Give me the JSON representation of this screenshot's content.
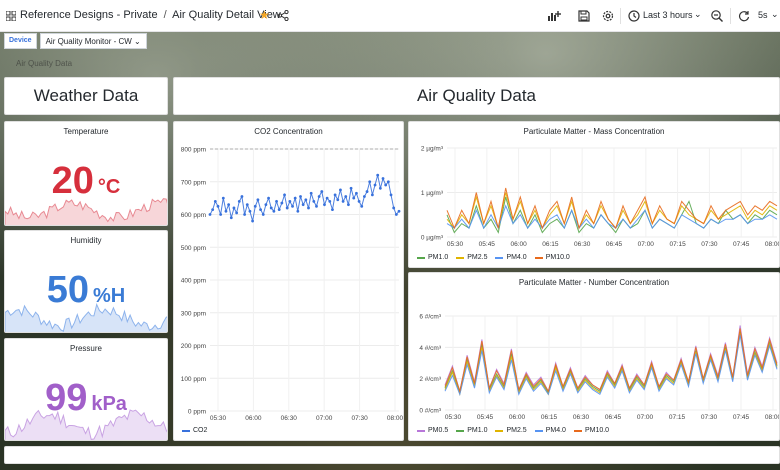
{
  "topbar": {
    "breadcrumb_folder": "Reference Designs - Private",
    "breadcrumb_separator": "/",
    "breadcrumb_dashboard": "Air Quality Detail View",
    "time_range": "Last 3 hours",
    "refresh_interval": "5s"
  },
  "variables": {
    "device_label": "Device",
    "device_value": "Air Quality Monitor - CW"
  },
  "dimmed_label": "Air Quality Data",
  "headers": {
    "weather": "Weather Data",
    "air": "Air Quality Data"
  },
  "stats": {
    "temperature": {
      "title": "Temperature",
      "value": "20",
      "unit": "°C",
      "color": "#d62f3c",
      "spark_color": "#e88a93"
    },
    "humidity": {
      "title": "Humidity",
      "value": "50",
      "unit": "%H",
      "color": "#3a7bd5",
      "spark_color": "#8db3ec"
    },
    "pressure": {
      "title": "Pressure",
      "value": "99",
      "unit": "kPa",
      "color": "#a15fc9",
      "spark_color": "#c9a3e3"
    }
  },
  "chart_data": [
    {
      "type": "line",
      "title": "CO2 Concentration",
      "y_ticks": [
        "800 ppm",
        "700 ppm",
        "600 ppm",
        "500 ppm",
        "400 ppm",
        "300 ppm",
        "200 ppm",
        "100 ppm",
        "0 ppm"
      ],
      "x_ticks": [
        "05:30",
        "06:00",
        "06:30",
        "07:00",
        "07:30",
        "08:00"
      ],
      "ylim": [
        0,
        800
      ],
      "threshold": 800,
      "series": [
        {
          "name": "CO2",
          "color": "#3871dc",
          "values": [
            600,
            615,
            640,
            625,
            600,
            650,
            610,
            630,
            590,
            620,
            605,
            640,
            655,
            600,
            630,
            610,
            580,
            625,
            645,
            615,
            600,
            630,
            650,
            620,
            610,
            640,
            615,
            635,
            660,
            620,
            640,
            625,
            650,
            610,
            655,
            630,
            645,
            620,
            665,
            640,
            625,
            655,
            670,
            630,
            650,
            640,
            615,
            660,
            645,
            675,
            640,
            655,
            630,
            680,
            650,
            665,
            640,
            625,
            655,
            670,
            700,
            660,
            690,
            720,
            680,
            710,
            690,
            700,
            660,
            620,
            600,
            610
          ]
        }
      ]
    },
    {
      "type": "line",
      "title": "Particulate Matter - Mass Concentration",
      "y_ticks": [
        "2 µg/m³",
        "1 µg/m³",
        "0 µg/m³"
      ],
      "x_ticks": [
        "05:30",
        "05:45",
        "06:00",
        "06:15",
        "06:30",
        "06:45",
        "07:00",
        "07:15",
        "07:30",
        "07:45",
        "08:00"
      ],
      "ylim": [
        0,
        2
      ],
      "series": [
        {
          "name": "PM1.0",
          "color": "#56a64b",
          "values": [
            0.5,
            0.1,
            0.3,
            0.2,
            0.7,
            0.2,
            0.4,
            0.1,
            0.9,
            0.3,
            0.6,
            0.2,
            0.5,
            0.1,
            0.3,
            0.4,
            0.2,
            0.6,
            0.1,
            0.3,
            0.2,
            0.5,
            0.3,
            0.1,
            0.4,
            0.2,
            0.3,
            0.6,
            0.2,
            0.4,
            0.3,
            0.2,
            0.5,
            0.8,
            0.3,
            0.2,
            0.4,
            0.3,
            0.6,
            0.4,
            0.5,
            0.3,
            0.5,
            0.4,
            0.6,
            0.5
          ]
        },
        {
          "name": "PM2.5",
          "color": "#e0b400",
          "values": [
            0.4,
            0.2,
            0.5,
            0.3,
            0.9,
            0.3,
            0.7,
            0.2,
            1.0,
            0.4,
            0.8,
            0.3,
            0.6,
            0.2,
            0.5,
            0.7,
            0.3,
            0.8,
            0.2,
            0.5,
            0.3,
            0.7,
            0.4,
            0.2,
            0.6,
            0.3,
            0.5,
            0.8,
            0.3,
            0.6,
            0.4,
            0.3,
            0.7,
            0.5,
            0.4,
            0.3,
            0.6,
            0.4,
            0.5,
            0.6,
            0.7,
            0.4,
            0.6,
            0.5,
            0.7,
            0.6
          ]
        },
        {
          "name": "PM4.0",
          "color": "#5794f2",
          "values": [
            0.3,
            0.2,
            0.4,
            0.2,
            0.6,
            0.2,
            0.5,
            0.2,
            0.7,
            0.3,
            0.5,
            0.2,
            0.4,
            0.2,
            0.4,
            0.5,
            0.2,
            0.6,
            0.2,
            0.4,
            0.2,
            0.5,
            0.3,
            0.2,
            0.4,
            0.2,
            0.4,
            0.6,
            0.2,
            0.4,
            0.3,
            0.2,
            0.5,
            0.4,
            0.3,
            0.2,
            0.4,
            0.3,
            0.4,
            0.4,
            0.5,
            0.3,
            0.4,
            0.4,
            0.5,
            0.4
          ]
        },
        {
          "name": "PM10.0",
          "color": "#e86a1c",
          "values": [
            0.6,
            0.2,
            0.6,
            0.3,
            1.0,
            0.3,
            0.8,
            0.2,
            1.1,
            0.4,
            0.9,
            0.3,
            0.7,
            0.2,
            0.6,
            0.8,
            0.3,
            0.9,
            0.2,
            0.6,
            0.3,
            0.8,
            0.4,
            0.2,
            0.7,
            0.3,
            0.6,
            0.9,
            0.3,
            0.7,
            0.4,
            0.3,
            0.8,
            0.6,
            0.4,
            0.3,
            0.7,
            0.4,
            0.6,
            0.7,
            0.8,
            0.5,
            0.7,
            0.6,
            0.8,
            0.7
          ]
        }
      ]
    },
    {
      "type": "line",
      "title": "Particulate Matter - Number Concentration",
      "y_ticks": [
        "6 #/cm³",
        "4 #/cm³",
        "2 #/cm³",
        "0 #/cm³"
      ],
      "x_ticks": [
        "05:30",
        "05:45",
        "06:00",
        "06:15",
        "06:30",
        "06:45",
        "07:00",
        "07:15",
        "07:30",
        "07:45",
        "08:00"
      ],
      "ylim": [
        0,
        6
      ],
      "series": [
        {
          "name": "PM0.5",
          "color": "#b877d9",
          "values": [
            1.6,
            2.8,
            1.2,
            3.5,
            1.8,
            4.5,
            1.4,
            2.6,
            1.7,
            3.9,
            1.3,
            2.4,
            1.6,
            2.1,
            1.2,
            3.0,
            1.5,
            2.7,
            1.4,
            2.2,
            1.6,
            1.3,
            2.5,
            1.7,
            2.9,
            1.4,
            2.3,
            1.6,
            3.1,
            1.5,
            2.4,
            1.9,
            3.3,
            1.8,
            4.1,
            2.0,
            3.6,
            2.2,
            4.3,
            2.1,
            5.4,
            2.3,
            4.0,
            2.8,
            4.6,
            3.0
          ]
        },
        {
          "name": "PM1.0",
          "color": "#56a64b",
          "values": [
            1.4,
            2.5,
            1.1,
            3.2,
            1.6,
            4.2,
            1.3,
            2.3,
            1.5,
            3.6,
            1.2,
            2.2,
            1.4,
            1.9,
            1.1,
            2.8,
            1.4,
            2.5,
            1.3,
            2.0,
            1.5,
            1.2,
            2.3,
            1.6,
            2.7,
            1.3,
            2.1,
            1.5,
            2.9,
            1.4,
            2.2,
            1.8,
            3.1,
            1.7,
            3.8,
            1.9,
            3.4,
            2.0,
            4.0,
            2.0,
            5.0,
            2.1,
            3.7,
            2.6,
            4.3,
            2.8
          ]
        },
        {
          "name": "PM2.5",
          "color": "#e0b400",
          "values": [
            1.3,
            2.4,
            1.0,
            3.1,
            1.5,
            4.0,
            1.2,
            2.2,
            1.4,
            3.4,
            1.1,
            2.1,
            1.3,
            1.8,
            1.0,
            2.7,
            1.3,
            2.4,
            1.2,
            1.9,
            1.4,
            1.1,
            2.2,
            1.5,
            2.6,
            1.2,
            2.0,
            1.4,
            2.8,
            1.3,
            2.1,
            1.7,
            3.0,
            1.6,
            3.7,
            1.8,
            3.3,
            1.9,
            3.9,
            1.9,
            4.9,
            2.0,
            3.6,
            2.5,
            4.2,
            2.7
          ]
        },
        {
          "name": "PM4.0",
          "color": "#5794f2",
          "values": [
            1.2,
            2.2,
            1.0,
            2.9,
            1.4,
            3.8,
            1.1,
            2.1,
            1.3,
            3.2,
            1.0,
            2.0,
            1.2,
            1.7,
            1.0,
            2.5,
            1.2,
            2.3,
            1.1,
            1.8,
            1.3,
            1.0,
            2.1,
            1.4,
            2.5,
            1.1,
            1.9,
            1.3,
            2.7,
            1.2,
            2.0,
            1.6,
            2.9,
            1.5,
            3.6,
            1.7,
            3.2,
            1.8,
            3.8,
            1.8,
            4.8,
            1.9,
            3.5,
            2.4,
            4.1,
            2.6
          ]
        },
        {
          "name": "PM10.0",
          "color": "#e86a1c",
          "values": [
            1.5,
            2.7,
            1.2,
            3.4,
            1.7,
            4.4,
            1.4,
            2.5,
            1.6,
            3.8,
            1.3,
            2.3,
            1.5,
            2.0,
            1.2,
            2.9,
            1.5,
            2.6,
            1.4,
            2.1,
            1.6,
            1.3,
            2.4,
            1.7,
            2.8,
            1.4,
            2.2,
            1.6,
            3.0,
            1.5,
            2.3,
            1.9,
            3.2,
            1.8,
            4.0,
            2.0,
            3.5,
            2.1,
            4.2,
            2.1,
            5.2,
            2.2,
            3.9,
            2.7,
            4.5,
            2.9
          ]
        }
      ]
    }
  ],
  "icons": {
    "apps": "apps-grid-icon",
    "star": "star-icon",
    "share": "share-icon",
    "add_panel": "add-panel-icon",
    "save": "save-icon",
    "settings": "gear-icon",
    "clock": "clock-icon",
    "zoom_out": "zoom-out-icon",
    "refresh": "refresh-icon"
  }
}
